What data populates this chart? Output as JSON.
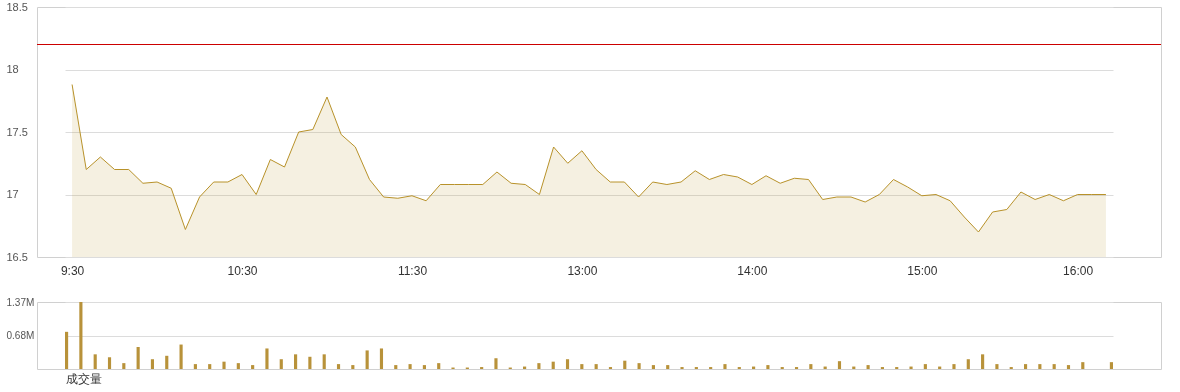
{
  "chart_data": [
    {
      "type": "area",
      "categories": [
        "9:30",
        null,
        null,
        null,
        null,
        null,
        null,
        null,
        null,
        null,
        null,
        null,
        "10:30",
        null,
        null,
        null,
        null,
        null,
        null,
        null,
        null,
        null,
        null,
        null,
        "11:30",
        null,
        null,
        null,
        null,
        null,
        null,
        null,
        null,
        null,
        null,
        null,
        "13:00",
        null,
        null,
        null,
        null,
        null,
        null,
        null,
        null,
        null,
        null,
        null,
        "14:00",
        null,
        null,
        null,
        null,
        null,
        null,
        null,
        null,
        null,
        null,
        null,
        "15:00",
        null,
        null,
        null,
        null,
        null,
        null,
        null,
        null,
        null,
        null,
        "16:00",
        null,
        null
      ],
      "series": [
        {
          "color": "#b8922a",
          "values": [
            17.88,
            17.2,
            17.3,
            17.2,
            17.2,
            17.09,
            17.1,
            17.05,
            16.72,
            16.98,
            17.1,
            17.1,
            17.16,
            17.0,
            17.28,
            17.22,
            17.5,
            17.52,
            17.78,
            17.48,
            17.38,
            17.12,
            16.98,
            16.97,
            16.99,
            16.95,
            17.08,
            17.08,
            17.08,
            17.08,
            17.18,
            17.09,
            17.08,
            17.0,
            17.38,
            17.25,
            17.35,
            17.2,
            17.1,
            17.1,
            16.98,
            17.1,
            17.08,
            17.1,
            17.19,
            17.12,
            17.16,
            17.14,
            17.08,
            17.15,
            17.09,
            17.13,
            17.12,
            16.96,
            16.98,
            16.98,
            16.94,
            17.0,
            17.12,
            17.06,
            16.99,
            17.0,
            16.95,
            16.82,
            16.7,
            16.86,
            16.88,
            17.02,
            16.96,
            17.0,
            16.95,
            17.0,
            17.0,
            17.0
          ]
        }
      ],
      "ylim": [
        16.5,
        18.5
      ],
      "yticks": [
        16.5,
        17,
        17.5,
        18,
        18.5
      ],
      "grid": "y",
      "ref_lines": [
        {
          "axis": "y",
          "value": 18.2,
          "color": "#cc0000"
        }
      ]
    },
    {
      "type": "bar",
      "categories": [
        null,
        null,
        null,
        null,
        null,
        null,
        null,
        null,
        null,
        null,
        null,
        null,
        null,
        null,
        null,
        null,
        null,
        null,
        null,
        null,
        null,
        null,
        null,
        null,
        null,
        null,
        null,
        null,
        null,
        null,
        null,
        null,
        null,
        null,
        null,
        null,
        null,
        null,
        null,
        null,
        null,
        null,
        null,
        null,
        null,
        null,
        null,
        null,
        null,
        null,
        null,
        null,
        null,
        null,
        null,
        null,
        null,
        null,
        null,
        null,
        null,
        null,
        null,
        null,
        null,
        null,
        null,
        null,
        null,
        null,
        null,
        null,
        null,
        null
      ],
      "series": [
        {
          "color": "#b8923a",
          "values": [
            0.76,
            1.37,
            0.3,
            0.24,
            0.12,
            0.45,
            0.2,
            0.27,
            0.5,
            0.1,
            0.1,
            0.15,
            0.12,
            0.08,
            0.42,
            0.2,
            0.3,
            0.25,
            0.3,
            0.1,
            0.08,
            0.38,
            0.42,
            0.08,
            0.1,
            0.08,
            0.12,
            0.03,
            0.03,
            0.04,
            0.22,
            0.03,
            0.05,
            0.12,
            0.15,
            0.2,
            0.1,
            0.1,
            0.04,
            0.17,
            0.12,
            0.08,
            0.08,
            0.04,
            0.04,
            0.04,
            0.1,
            0.04,
            0.05,
            0.08,
            0.04,
            0.04,
            0.1,
            0.05,
            0.16,
            0.05,
            0.08,
            0.04,
            0.04,
            0.05,
            0.1,
            0.05,
            0.1,
            0.2,
            0.3,
            0.1,
            0.04,
            0.1,
            0.1,
            0.1,
            0.08,
            0.14,
            null,
            0.14
          ]
        }
      ],
      "ylim": [
        0,
        1.37
      ],
      "yticks": [
        {
          "value": 0.68,
          "label": "0.68M"
        },
        {
          "value": 1.37,
          "label": "1.37M"
        }
      ],
      "grid": "y",
      "tick_labels": "y",
      "xlabel": "成交量"
    }
  ]
}
